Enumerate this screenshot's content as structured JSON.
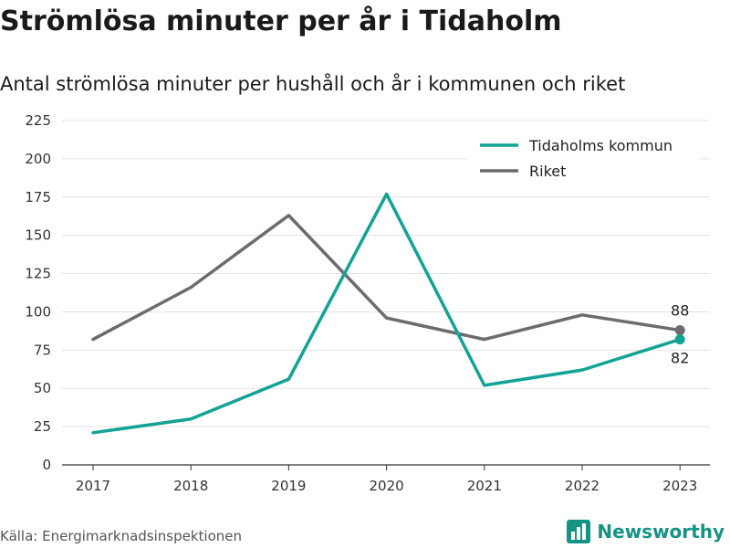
{
  "title": "Strömlösa minuter per år i Tidaholm",
  "subtitle": "Antal strömlösa minuter per hushåll och år i kommunen och riket",
  "source": "Källa: Energimarknadsinspektionen",
  "brand": {
    "name": "Newsworthy",
    "icon": "bar-chart-logo-icon",
    "color": "#159486"
  },
  "chart_data": {
    "type": "line",
    "title": "Strömlösa minuter per år i Tidaholm",
    "subtitle": "Antal strömlösa minuter per hushåll och år i kommunen och riket",
    "xlabel": "",
    "ylabel": "",
    "categories": [
      "2017",
      "2018",
      "2019",
      "2020",
      "2021",
      "2022",
      "2023"
    ],
    "ylim": [
      0,
      225
    ],
    "yticks": [
      0,
      25,
      50,
      75,
      100,
      125,
      150,
      175,
      200,
      225
    ],
    "grid": true,
    "legend_position": "top-right",
    "series": [
      {
        "name": "Tidaholms kommun",
        "color": "#12a394",
        "values": [
          21,
          30,
          56,
          177,
          52,
          62,
          82
        ],
        "end_label": "82"
      },
      {
        "name": "Riket",
        "color": "#6b6b70",
        "values": [
          82,
          116,
          163,
          96,
          82,
          98,
          88
        ],
        "end_label": "88"
      }
    ]
  }
}
